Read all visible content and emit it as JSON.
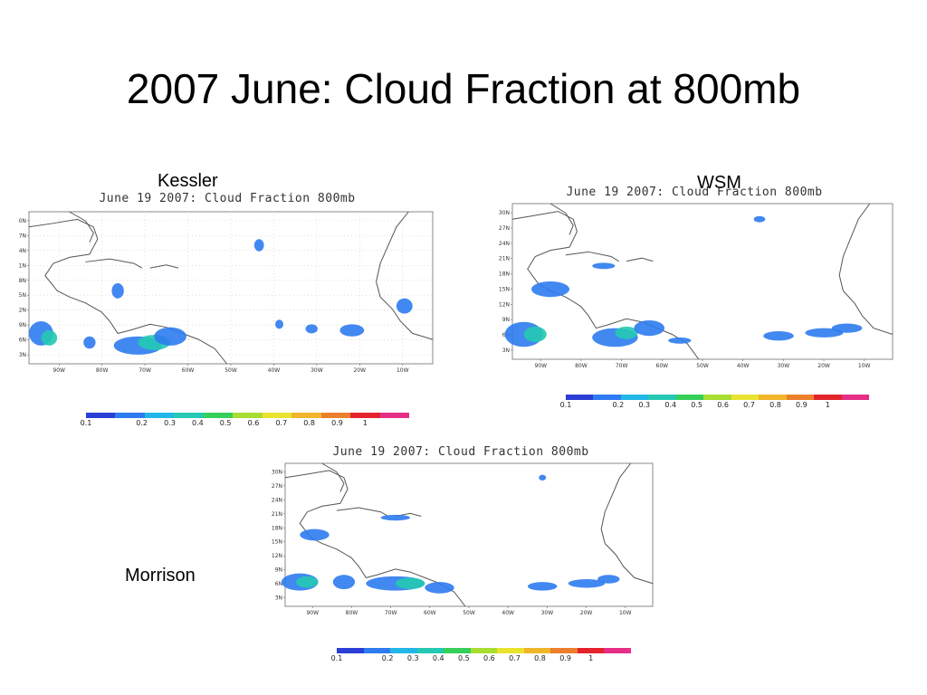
{
  "slide": {
    "title": "2007 June: Cloud Fraction at 800mb"
  },
  "colorbar": {
    "colors": [
      "#2b3fd6",
      "#2e7bf0",
      "#23b7e8",
      "#25c9b3",
      "#36cf5a",
      "#a8dd32",
      "#e9e330",
      "#f0b52a",
      "#ec7f2c",
      "#e4242c",
      "#e52f86"
    ],
    "labels": [
      "0.1",
      "0.2",
      "0.3",
      "0.4",
      "0.5",
      "0.6",
      "0.7",
      "0.8",
      "0.9",
      "1"
    ]
  },
  "map_axes": {
    "lat_labels": [
      "30N",
      "27N",
      "24N",
      "21N",
      "18N",
      "15N",
      "12N",
      "9N",
      "6N",
      "3N"
    ],
    "lon_labels": [
      "90W",
      "80W",
      "70W",
      "60W",
      "50W",
      "40W",
      "30W",
      "20W",
      "10W"
    ]
  },
  "panels": [
    {
      "caption": "Kessler",
      "title": "June 19 2007: Cloud Fraction 800mb",
      "grid": true
    },
    {
      "caption": "WSM",
      "title": "June 19 2007: Cloud Fraction 800mb",
      "grid": false
    },
    {
      "caption": "Morrison",
      "title": "June 19 2007: Cloud Fraction 800mb",
      "grid": false
    }
  ]
}
